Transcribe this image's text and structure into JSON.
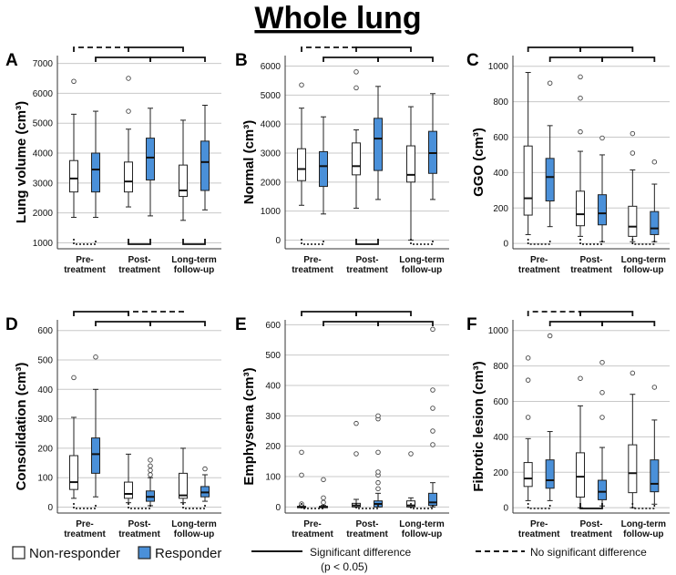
{
  "title": "Whole lung",
  "legend": {
    "non_responder": "Non-responder",
    "responder": "Responder",
    "significant": "Significant difference",
    "significant_p": "(p < 0.05)",
    "not_significant": "No significant difference",
    "non_responder_color": "#ffffff",
    "responder_color": "#4a90d9"
  },
  "chart_data": [
    {
      "panel": "A",
      "type": "box",
      "ylabel": "Lung volume (cm³)",
      "ylim": [
        800,
        7200
      ],
      "yticks": [
        1000,
        2000,
        3000,
        4000,
        5000,
        6000,
        7000
      ],
      "categories": [
        [
          "Pre-",
          "treatment"
        ],
        [
          "Post-",
          "treatment"
        ],
        [
          "Long-term",
          "follow-up"
        ]
      ],
      "series": [
        {
          "name": "Non-responder",
          "boxes": [
            {
              "min": 1850,
              "q1": 2700,
              "median": 3150,
              "q3": 3750,
              "max": 5300,
              "outliers": [
                6400
              ]
            },
            {
              "min": 2200,
              "q1": 2700,
              "median": 3050,
              "q3": 3700,
              "max": 4800,
              "outliers": [
                5400,
                6500
              ]
            },
            {
              "min": 1750,
              "q1": 2550,
              "median": 2750,
              "q3": 3600,
              "max": 5100,
              "outliers": []
            }
          ]
        },
        {
          "name": "Responder",
          "boxes": [
            {
              "min": 1850,
              "q1": 2700,
              "median": 3450,
              "q3": 4000,
              "max": 5400,
              "outliers": []
            },
            {
              "min": 1900,
              "q1": 3100,
              "median": 3850,
              "q3": 4500,
              "max": 5500,
              "outliers": []
            },
            {
              "min": 2100,
              "q1": 2750,
              "median": 3700,
              "q3": 4400,
              "max": 5600,
              "outliers": []
            }
          ]
        }
      ],
      "within_group": [
        "ns",
        "sig",
        "sig"
      ],
      "between_time": {
        "top": [
          "ns",
          "sig"
        ],
        "lower": [
          "sig",
          "sig"
        ]
      }
    },
    {
      "panel": "B",
      "type": "box",
      "ylabel": "Normal (cm³)",
      "ylim": [
        -300,
        6300
      ],
      "yticks": [
        0,
        1000,
        2000,
        3000,
        4000,
        5000,
        6000
      ],
      "categories": [
        [
          "Pre-",
          "treatment"
        ],
        [
          "Post-",
          "treatment"
        ],
        [
          "Long-term",
          "follow-up"
        ]
      ],
      "series": [
        {
          "name": "Non-responder",
          "boxes": [
            {
              "min": 1200,
              "q1": 2050,
              "median": 2450,
              "q3": 3150,
              "max": 4550,
              "outliers": [
                5350
              ]
            },
            {
              "min": 1100,
              "q1": 2250,
              "median": 2550,
              "q3": 3350,
              "max": 3800,
              "outliers": [
                5250,
                5800
              ]
            },
            {
              "min": 0,
              "q1": 2000,
              "median": 2250,
              "q3": 3250,
              "max": 4600,
              "outliers": []
            }
          ]
        },
        {
          "name": "Responder",
          "boxes": [
            {
              "min": 900,
              "q1": 1850,
              "median": 2550,
              "q3": 3050,
              "max": 4250,
              "outliers": []
            },
            {
              "min": 1400,
              "q1": 2400,
              "median": 3500,
              "q3": 4200,
              "max": 5300,
              "outliers": []
            },
            {
              "min": 1400,
              "q1": 2300,
              "median": 3000,
              "q3": 3750,
              "max": 5050,
              "outliers": []
            }
          ]
        }
      ],
      "within_group": [
        "ns",
        "sig",
        "ns"
      ],
      "between_time": {
        "top": [
          "ns",
          "sig"
        ],
        "lower": [
          "sig",
          "sig"
        ]
      }
    },
    {
      "panel": "C",
      "type": "box",
      "ylabel": "GGO (cm³)",
      "ylim": [
        -30,
        1050
      ],
      "yticks": [
        0,
        200,
        400,
        600,
        800,
        1000
      ],
      "categories": [
        [
          "Pre-",
          "treatment"
        ],
        [
          "Post-",
          "treatment"
        ],
        [
          "Long-term",
          "follow-up"
        ]
      ],
      "series": [
        {
          "name": "Non-responder",
          "boxes": [
            {
              "min": 50,
              "q1": 160,
              "median": 255,
              "q3": 550,
              "max": 965,
              "outliers": []
            },
            {
              "min": 40,
              "q1": 100,
              "median": 165,
              "q3": 295,
              "max": 520,
              "outliers": [
                630,
                820,
                940
              ]
            },
            {
              "min": 10,
              "q1": 40,
              "median": 95,
              "q3": 210,
              "max": 415,
              "outliers": [
                510,
                620
              ]
            }
          ]
        },
        {
          "name": "Responder",
          "boxes": [
            {
              "min": 95,
              "q1": 240,
              "median": 375,
              "q3": 480,
              "max": 665,
              "outliers": [
                905
              ]
            },
            {
              "min": 10,
              "q1": 105,
              "median": 170,
              "q3": 275,
              "max": 500,
              "outliers": [
                595
              ]
            },
            {
              "min": 10,
              "q1": 50,
              "median": 85,
              "q3": 180,
              "max": 335,
              "outliers": [
                460
              ]
            }
          ]
        }
      ],
      "within_group": [
        "ns",
        "ns",
        "ns"
      ],
      "between_time": {
        "top": [
          "sig",
          "sig"
        ],
        "lower": [
          "sig",
          "sig"
        ]
      }
    },
    {
      "panel": "D",
      "type": "box",
      "ylabel": "Consolidation (cm³)",
      "ylim": [
        -20,
        630
      ],
      "yticks": [
        0,
        100,
        200,
        300,
        400,
        500,
        600
      ],
      "categories": [
        [
          "Pre-",
          "treatment"
        ],
        [
          "Post-",
          "treatment"
        ],
        [
          "Long-term",
          "follow-up"
        ]
      ],
      "series": [
        {
          "name": "Non-responder",
          "boxes": [
            {
              "min": 30,
              "q1": 60,
              "median": 85,
              "q3": 175,
              "max": 305,
              "outliers": [
                440
              ]
            },
            {
              "min": 15,
              "q1": 30,
              "median": 45,
              "q3": 85,
              "max": 180,
              "outliers": []
            },
            {
              "min": 15,
              "q1": 30,
              "median": 40,
              "q3": 115,
              "max": 200,
              "outliers": []
            }
          ]
        },
        {
          "name": "Responder",
          "boxes": [
            {
              "min": 35,
              "q1": 115,
              "median": 180,
              "q3": 235,
              "max": 400,
              "outliers": [
                510
              ]
            },
            {
              "min": 5,
              "q1": 20,
              "median": 35,
              "q3": 55,
              "max": 100,
              "outliers": [
                110,
                125,
                140,
                160
              ]
            },
            {
              "min": 20,
              "q1": 35,
              "median": 50,
              "q3": 70,
              "max": 110,
              "outliers": [
                130
              ]
            }
          ]
        }
      ],
      "within_group": [
        "ns",
        "ns",
        "ns"
      ],
      "between_time": {
        "top": [
          "sig",
          "ns"
        ],
        "lower": [
          "sig",
          "sig"
        ]
      }
    },
    {
      "panel": "E",
      "type": "box",
      "ylabel": "Emphysema (cm³)",
      "ylim": [
        -20,
        610
      ],
      "yticks": [
        0,
        100,
        200,
        300,
        400,
        500,
        600
      ],
      "categories": [
        [
          "Pre-",
          "treatment"
        ],
        [
          "Post-",
          "treatment"
        ],
        [
          "Long-term",
          "follow-up"
        ]
      ],
      "series": [
        {
          "name": "Non-responder",
          "boxes": [
            {
              "min": 0,
              "q1": 0,
              "median": 0,
              "q3": 2,
              "max": 5,
              "outliers": [
                10,
                105,
                180
              ]
            },
            {
              "min": 0,
              "q1": 0,
              "median": 5,
              "q3": 12,
              "max": 25,
              "outliers": [
                175,
                275
              ]
            },
            {
              "min": 0,
              "q1": 0,
              "median": 5,
              "q3": 20,
              "max": 30,
              "outliers": [
                175
              ]
            }
          ]
        },
        {
          "name": "Responder",
          "boxes": [
            {
              "min": 0,
              "q1": 0,
              "median": 0,
              "q3": 2,
              "max": 5,
              "outliers": [
                15,
                30,
                90
              ]
            },
            {
              "min": 0,
              "q1": 0,
              "median": 10,
              "q3": 20,
              "max": 45,
              "outliers": [
                60,
                80,
                105,
                115,
                180,
                290,
                300
              ]
            },
            {
              "min": 0,
              "q1": 5,
              "median": 15,
              "q3": 45,
              "max": 80,
              "outliers": [
                205,
                250,
                325,
                385,
                585
              ]
            }
          ]
        }
      ],
      "within_group": [
        "ns",
        "ns",
        "ns"
      ],
      "between_time": {
        "top": [
          "sig",
          "sig"
        ],
        "lower": [
          "sig",
          "sig"
        ]
      }
    },
    {
      "panel": "F",
      "type": "box",
      "ylabel": "Fibrotic lesion (cm³)",
      "ylim": [
        -30,
        1050
      ],
      "yticks": [
        0,
        200,
        400,
        600,
        800,
        1000
      ],
      "categories": [
        [
          "Pre-",
          "treatment"
        ],
        [
          "Post-",
          "treatment"
        ],
        [
          "Long-term",
          "follow-up"
        ]
      ],
      "series": [
        {
          "name": "Non-responder",
          "boxes": [
            {
              "min": 40,
              "q1": 120,
              "median": 165,
              "q3": 255,
              "max": 390,
              "outliers": [
                510,
                720,
                845
              ]
            },
            {
              "min": 0,
              "q1": 60,
              "median": 175,
              "q3": 310,
              "max": 575,
              "outliers": [
                730
              ]
            },
            {
              "min": 0,
              "q1": 85,
              "median": 195,
              "q3": 355,
              "max": 640,
              "outliers": [
                760
              ]
            }
          ]
        },
        {
          "name": "Responder",
          "boxes": [
            {
              "min": 40,
              "q1": 110,
              "median": 155,
              "q3": 270,
              "max": 430,
              "outliers": [
                970
              ]
            },
            {
              "min": 10,
              "q1": 45,
              "median": 90,
              "q3": 155,
              "max": 340,
              "outliers": [
                510,
                650,
                820
              ]
            },
            {
              "min": 20,
              "q1": 90,
              "median": 135,
              "q3": 270,
              "max": 495,
              "outliers": [
                680
              ]
            }
          ]
        }
      ],
      "within_group": [
        "ns",
        "sig",
        "ns"
      ],
      "between_time": {
        "top": [
          "ns",
          "sig"
        ],
        "lower": [
          "sig",
          "sig"
        ]
      }
    }
  ]
}
